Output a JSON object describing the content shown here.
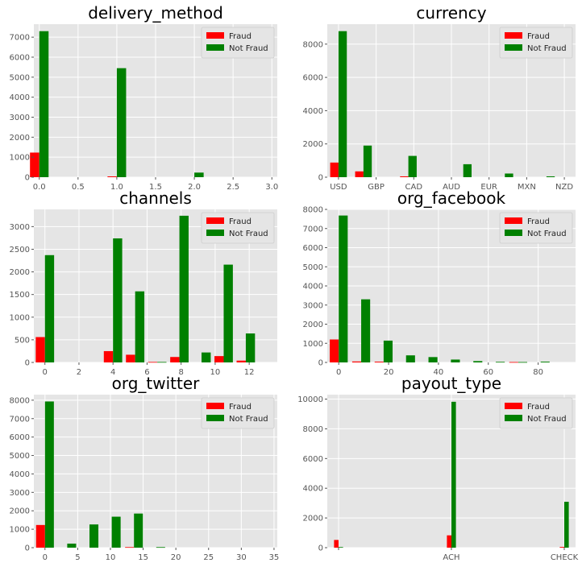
{
  "colors": {
    "fraud": "#ff0000",
    "not_fraud": "#008000",
    "panel_bg": "#e5e5e5",
    "grid": "#ffffff",
    "tick_text": "#555555",
    "title_text": "#000000"
  },
  "legend_labels": [
    "Fraud",
    "Not Fraud"
  ],
  "chart_data": [
    {
      "type": "bar",
      "title": "delivery_method",
      "grid": true,
      "legend": "top-right",
      "xlim": [
        -0.07,
        3.07
      ],
      "ylim": [
        0,
        7650
      ],
      "xticks": [
        0.0,
        0.5,
        1.0,
        1.5,
        2.0,
        2.5,
        3.0
      ],
      "xtick_labels": [
        "0.0",
        "0.5",
        "1.0",
        "1.5",
        "2.0",
        "2.5",
        "3.0"
      ],
      "yticks": [
        0,
        1000,
        2000,
        3000,
        4000,
        5000,
        6000,
        7000
      ],
      "bar_width": 0.12,
      "series": [
        {
          "name": "Fraud",
          "x": [
            0.0,
            1.0,
            2.0
          ],
          "values": [
            1230,
            40,
            0
          ]
        },
        {
          "name": "Not Fraud",
          "x": [
            0.0,
            1.0,
            2.0
          ],
          "values": [
            7300,
            5450,
            230
          ]
        }
      ]
    },
    {
      "type": "bar",
      "title": "currency",
      "grid": true,
      "legend": "top-right",
      "xlim": [
        -0.27,
        5.7
      ],
      "ylim": [
        0,
        9200
      ],
      "xticks": [
        0.0,
        0.905,
        1.81,
        2.715,
        3.62,
        4.525,
        5.43
      ],
      "xtick_labels": [
        "USD",
        "GBP",
        "CAD",
        "AUD",
        "EUR",
        "MXN",
        "NZD"
      ],
      "yticks": [
        0,
        2000,
        4000,
        6000,
        8000
      ],
      "bar_width": 0.2,
      "series": [
        {
          "name": "Fraud",
          "x": [
            0.0,
            0.6,
            1.68,
            3.0,
            4.0,
            5.0
          ],
          "values": [
            880,
            350,
            50,
            0,
            0,
            0
          ]
        },
        {
          "name": "Not Fraud",
          "x": [
            0.0,
            0.6,
            1.68,
            3.0,
            4.0,
            5.0
          ],
          "values": [
            8780,
            1900,
            1280,
            780,
            220,
            50
          ]
        }
      ]
    },
    {
      "type": "bar",
      "title": "channels",
      "grid": true,
      "legend": "top-right",
      "xlim": [
        -0.65,
        13.65
      ],
      "ylim": [
        0,
        3380
      ],
      "xticks": [
        0,
        2,
        4,
        6,
        8,
        10,
        12
      ],
      "xtick_labels": [
        "0",
        "2",
        "4",
        "6",
        "8",
        "10",
        "12"
      ],
      "yticks": [
        0,
        500,
        1000,
        1500,
        2000,
        2500,
        3000
      ],
      "bar_width": 0.54,
      "series": [
        {
          "name": "Fraud",
          "x": [
            0,
            4,
            5.3,
            6.6,
            7.9,
            9.2,
            10.5,
            11.8
          ],
          "values": [
            560,
            250,
            170,
            10,
            120,
            0,
            140,
            40
          ]
        },
        {
          "name": "Not Fraud",
          "x": [
            0,
            4,
            5.3,
            6.6,
            7.9,
            9.2,
            10.5,
            11.8
          ],
          "values": [
            2370,
            2740,
            1570,
            10,
            3240,
            220,
            2160,
            640
          ]
        }
      ]
    },
    {
      "type": "bar",
      "title": "org_facebook",
      "grid": true,
      "legend": "top-right",
      "xlim": [
        -4.6,
        95
      ],
      "ylim": [
        0,
        8000
      ],
      "xticks": [
        0,
        20,
        40,
        60,
        80
      ],
      "xtick_labels": [
        "0",
        "20",
        "40",
        "60",
        "80"
      ],
      "yticks": [
        0,
        1000,
        2000,
        3000,
        4000,
        5000,
        6000,
        7000,
        8000
      ],
      "bar_width": 3.6,
      "series": [
        {
          "name": "Fraud",
          "x": [
            0,
            9,
            18,
            27,
            36,
            45,
            54,
            63,
            72,
            81
          ],
          "values": [
            1200,
            50,
            40,
            0,
            0,
            0,
            0,
            0,
            20,
            0
          ]
        },
        {
          "name": "Not Fraud",
          "x": [
            0,
            9,
            18,
            27,
            36,
            45,
            54,
            63,
            72,
            81
          ],
          "values": [
            7680,
            3300,
            1140,
            370,
            280,
            150,
            70,
            30,
            20,
            40
          ]
        }
      ]
    },
    {
      "type": "bar",
      "title": "org_twitter",
      "grid": true,
      "legend": "top-right",
      "xlim": [
        -1.7,
        35.5
      ],
      "ylim": [
        0,
        8300
      ],
      "xticks": [
        0,
        5,
        10,
        15,
        20,
        25,
        30,
        35
      ],
      "xtick_labels": [
        "0",
        "5",
        "10",
        "15",
        "20",
        "25",
        "30",
        "35"
      ],
      "yticks": [
        0,
        1000,
        2000,
        3000,
        4000,
        5000,
        6000,
        7000,
        8000
      ],
      "bar_width": 1.36,
      "series": [
        {
          "name": "Fraud",
          "x": [
            0,
            3.4,
            6.8,
            10.2,
            13.6,
            17.0
          ],
          "values": [
            1230,
            0,
            0,
            0,
            30,
            0
          ]
        },
        {
          "name": "Not Fraud",
          "x": [
            0,
            3.4,
            6.8,
            10.2,
            13.6,
            17.0
          ],
          "values": [
            7930,
            220,
            1260,
            1680,
            1850,
            30
          ]
        }
      ]
    },
    {
      "type": "bar",
      "title": "payout_type",
      "grid": true,
      "legend": "top-right",
      "xlim": [
        -0.1,
        2.1
      ],
      "ylim": [
        0,
        10300
      ],
      "xticks": [
        0,
        1.0,
        2.0
      ],
      "xtick_labels": [
        "",
        "ACH",
        "CHECK"
      ],
      "yticks": [
        0,
        2000,
        4000,
        6000,
        8000,
        10000
      ],
      "bar_width": 0.04,
      "series": [
        {
          "name": "Fraud",
          "x": [
            0,
            1.0,
            2.0
          ],
          "values": [
            520,
            830,
            50
          ]
        },
        {
          "name": "Not Fraud",
          "x": [
            0,
            1.0,
            2.0
          ],
          "values": [
            40,
            9820,
            3090
          ]
        }
      ]
    }
  ]
}
